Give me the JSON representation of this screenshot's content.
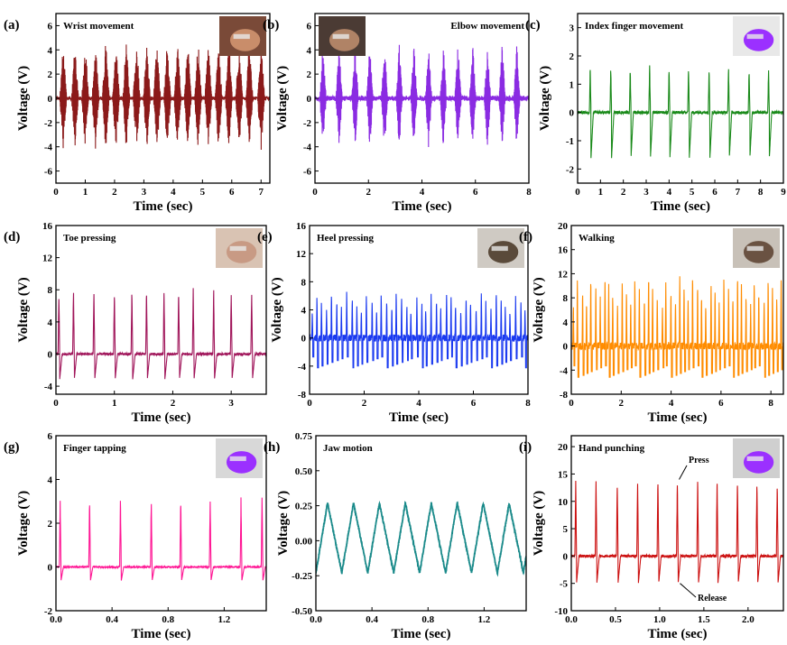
{
  "chart_data": [
    {
      "label": "(a)",
      "title": "Wrist movement",
      "type": "line",
      "color": "#8b1a1a",
      "xlabel": "Time (sec)",
      "ylabel": "Voltage (V)",
      "xlim": [
        0,
        7.3
      ],
      "ylim": [
        -7,
        7
      ],
      "xticks": [
        "0",
        "1",
        "2",
        "3",
        "4",
        "5",
        "6",
        "7"
      ],
      "yticks": [
        "-6",
        "-4",
        "-2",
        "0",
        "2",
        "4",
        "6"
      ],
      "signal": {
        "pattern": "burst",
        "peaks": [
          0.25,
          0.65,
          1.0,
          1.35,
          1.7,
          2.05,
          2.4,
          2.75,
          3.1,
          3.45,
          3.8,
          4.15,
          4.5,
          4.85,
          5.2,
          5.55,
          5.9,
          6.25,
          6.6,
          7.0
        ],
        "amp_pos": 4.8,
        "amp_neg": 4.3,
        "noise": 0.3
      },
      "inset": {
        "name": "wrist-photo",
        "skin": "#c98d6a",
        "bg": "#7a4a38"
      }
    },
    {
      "label": "(b)",
      "title": "Elbow movement",
      "type": "line",
      "color": "#8a2be2",
      "xlabel": "Time (sec)",
      "ylabel": "Voltage (V)",
      "xlim": [
        0,
        8
      ],
      "ylim": [
        -7,
        7
      ],
      "xticks": [
        "0",
        "2",
        "4",
        "6",
        "8"
      ],
      "yticks": [
        "-6",
        "-4",
        "-2",
        "0",
        "2",
        "4",
        "6"
      ],
      "signal": {
        "pattern": "burst",
        "peaks": [
          0.3,
          0.9,
          1.5,
          2.05,
          2.6,
          3.15,
          3.7,
          4.25,
          4.8,
          5.35,
          5.9,
          6.45,
          7.0,
          7.55
        ],
        "amp_pos": 4.6,
        "amp_neg": 4.2,
        "noise": 0.4
      },
      "inset": {
        "name": "elbow-photo",
        "skin": "#b08366",
        "bg": "#4b3b34"
      }
    },
    {
      "label": "(c)",
      "title": "Index finger movement",
      "type": "line",
      "color": "#1a8a1a",
      "xlabel": "Time (sec)",
      "ylabel": "Voltage (V)",
      "xlim": [
        0,
        9
      ],
      "ylim": [
        -2.5,
        3.5
      ],
      "xticks": [
        "0",
        "1",
        "2",
        "3",
        "4",
        "5",
        "6",
        "7",
        "8",
        "9"
      ],
      "yticks": [
        "-2",
        "-1",
        "0",
        "1",
        "2",
        "3"
      ],
      "signal": {
        "pattern": "spike",
        "peaks": [
          0.55,
          1.45,
          2.3,
          3.15,
          4.0,
          4.85,
          5.75,
          6.6,
          7.5,
          8.35
        ],
        "amp_pos": 1.6,
        "amp_neg": -1.8,
        "noise": 0.1
      },
      "inset": {
        "name": "glove-photo",
        "skin": "#9b30ff",
        "bg": "#e8e8e8"
      }
    },
    {
      "label": "(d)",
      "title": "Toe pressing",
      "type": "line",
      "color": "#a0155a",
      "xlabel": "Time (sec)",
      "ylabel": "Voltage (V)",
      "xlim": [
        0,
        3.6
      ],
      "ylim": [
        -5,
        16
      ],
      "xticks": [
        "0",
        "1",
        "2",
        "3"
      ],
      "yticks": [
        "-4",
        "0",
        "4",
        "8",
        "12",
        "16"
      ],
      "signal": {
        "pattern": "spike",
        "peaks": [
          0.05,
          0.3,
          0.65,
          1.0,
          1.3,
          1.55,
          1.85,
          2.1,
          2.35,
          2.7,
          3.0,
          3.35
        ],
        "amp_pos": 8.0,
        "amp_neg": -3.5,
        "noise": 0.3
      },
      "inset": {
        "name": "foot-photo",
        "skin": "#c89a84",
        "bg": "#d9c3b3"
      }
    },
    {
      "label": "(e)",
      "title": "Heel pressing",
      "type": "line",
      "color": "#1a3af0",
      "xlabel": "Time (sec)",
      "ylabel": "Voltage (V)",
      "xlim": [
        0,
        8
      ],
      "ylim": [
        -8,
        16
      ],
      "xticks": [
        "0",
        "2",
        "4",
        "6",
        "8"
      ],
      "yticks": [
        "-8",
        "-4",
        "0",
        "4",
        "8",
        "12",
        "16"
      ],
      "signal": {
        "pattern": "dense",
        "count": 44,
        "amp_pos": 5.5,
        "amp_neg": -4.5,
        "noise": 1.0
      },
      "inset": {
        "name": "shoe-photo",
        "skin": "#5a4a3a",
        "bg": "#cfcac3"
      }
    },
    {
      "label": "(f)",
      "title": "Walking",
      "type": "line",
      "color": "#ff8c00",
      "xlabel": "Time (sec)",
      "ylabel": "Voltage (V)",
      "xlim": [
        0,
        8.5
      ],
      "ylim": [
        -8,
        20
      ],
      "xticks": [
        "0",
        "2",
        "4",
        "6",
        "8"
      ],
      "yticks": [
        "-8",
        "-4",
        "0",
        "4",
        "8",
        "12",
        "16",
        "20"
      ],
      "signal": {
        "pattern": "dense",
        "count": 48,
        "amp_pos": 10,
        "amp_neg": -5.5,
        "noise": 1.2
      },
      "inset": {
        "name": "shoe-walk-photo",
        "skin": "#6a5242",
        "bg": "#c8c1b8"
      }
    },
    {
      "label": "(g)",
      "title": "Finger tapping",
      "type": "line",
      "color": "#ff1493",
      "xlabel": "Time (sec)",
      "ylabel": "Voltage (V)",
      "xlim": [
        0,
        1.5
      ],
      "ylim": [
        -2,
        6
      ],
      "xticks": [
        "0.0",
        "0.4",
        "0.8",
        "1.2"
      ],
      "yticks": [
        "-2",
        "0",
        "2",
        "4",
        "6"
      ],
      "signal": {
        "pattern": "spike",
        "peaks": [
          0.03,
          0.24,
          0.46,
          0.68,
          0.89,
          1.1,
          1.32,
          1.47
        ],
        "amp_pos": 3.1,
        "amp_neg": -0.7,
        "noise": 0.06
      },
      "inset": {
        "name": "tapping-photo",
        "skin": "#9b30ff",
        "bg": "#d8d8d8"
      }
    },
    {
      "label": "(h)",
      "title": "Jaw motion",
      "type": "line",
      "color": "#1a8a8a",
      "xlabel": "Time (sec)",
      "ylabel": "Voltage (V)",
      "xlim": [
        0,
        1.5
      ],
      "ylim": [
        -0.5,
        0.75
      ],
      "xticks": [
        "0.0",
        "0.4",
        "0.8",
        "1.2"
      ],
      "yticks": [
        "-0.50",
        "-0.25",
        "0.00",
        "0.25",
        "0.50",
        "0.75"
      ],
      "signal": {
        "pattern": "wave",
        "period": 0.185,
        "amp": 0.25,
        "noise": 0.02
      }
    },
    {
      "label": "(i)",
      "title": "Hand punching",
      "type": "line",
      "color": "#cc1111",
      "xlabel": "Time (sec)",
      "ylabel": "Voltage (V)",
      "xlim": [
        0,
        2.4
      ],
      "ylim": [
        -10,
        22
      ],
      "xticks": [
        "0.0",
        "0.5",
        "1.0",
        "1.5",
        "2.0"
      ],
      "yticks": [
        "-10",
        "-5",
        "0",
        "5",
        "10",
        "15",
        "20"
      ],
      "signal": {
        "pattern": "spike",
        "peaks": [
          0.05,
          0.28,
          0.52,
          0.75,
          0.98,
          1.2,
          1.43,
          1.65,
          1.88,
          2.1,
          2.33
        ],
        "amp_pos": 14,
        "amp_neg": -5.5,
        "noise": 0.5
      },
      "annotations": [
        {
          "text": "Press"
        },
        {
          "text": "Release"
        }
      ],
      "inset": {
        "name": "punch-photo",
        "skin": "#9b30ff",
        "bg": "#cfcfcf"
      }
    }
  ]
}
